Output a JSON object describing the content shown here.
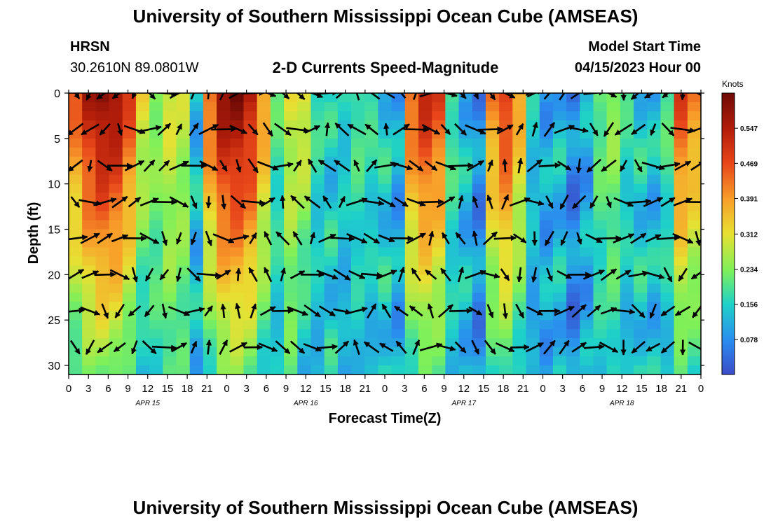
{
  "page": {
    "title": "University of Southern Mississippi Ocean Cube (AMSEAS)",
    "footer_title": "University of Southern Mississippi Ocean Cube (AMSEAS)",
    "station_name": "HRSN",
    "station_coords": "30.2610N  89.0801W",
    "model_start_label": "Model Start Time",
    "model_start_value": "04/15/2023 Hour 00"
  },
  "chart_data": {
    "type": "heatmap",
    "title": "2-D Currents Speed-Magnitude",
    "xlabel": "Forecast Time(Z)",
    "ylabel": "Depth (ft)",
    "xlim": [
      0,
      96
    ],
    "ylim": [
      0,
      31
    ],
    "x_tick_values": [
      0,
      3,
      6,
      9,
      12,
      15,
      18,
      21,
      24,
      27,
      30,
      33,
      36,
      39,
      42,
      45,
      48,
      51,
      54,
      57,
      60,
      63,
      66,
      69,
      72,
      75,
      78,
      81,
      84,
      87,
      90,
      93,
      96
    ],
    "x_tick_labels": [
      "0",
      "3",
      "6",
      "9",
      "12",
      "15",
      "18",
      "21",
      "0",
      "3",
      "6",
      "9",
      "12",
      "15",
      "18",
      "21",
      "0",
      "3",
      "6",
      "9",
      "12",
      "15",
      "18",
      "21",
      "0",
      "3",
      "6",
      "9",
      "12",
      "15",
      "18",
      "21",
      "0"
    ],
    "y_tick_values": [
      0,
      5,
      10,
      15,
      20,
      25,
      30
    ],
    "y_tick_labels": [
      "0",
      "5",
      "10",
      "15",
      "20",
      "25",
      "30"
    ],
    "day_labels": [
      {
        "hour": 12,
        "label": "APR 15"
      },
      {
        "hour": 36,
        "label": "APR 16"
      },
      {
        "hour": 60,
        "label": "APR 17"
      },
      {
        "hour": 84,
        "label": "APR 18"
      }
    ],
    "colorbar": {
      "units": "Knots",
      "range": [
        0,
        0.625
      ],
      "tick_values": [
        0.078,
        0.156,
        0.234,
        0.312,
        0.391,
        0.469,
        0.547
      ],
      "tick_labels": [
        "0.078",
        "0.156",
        "0.234",
        "0.312",
        "0.391",
        "0.469",
        "0.547"
      ]
    },
    "speed_profile_knots": [
      0.45,
      0.55,
      0.6,
      0.58,
      0.48,
      0.32,
      0.25,
      0.3,
      0.28,
      0.1,
      0.45,
      0.58,
      0.6,
      0.55,
      0.4,
      0.2,
      0.3,
      0.32,
      0.18,
      0.12,
      0.16,
      0.2,
      0.18,
      0.12,
      0.08,
      0.45,
      0.52,
      0.48,
      0.2,
      0.1,
      0.05,
      0.42,
      0.5,
      0.38,
      0.15,
      0.08,
      0.1,
      0.04,
      0.08,
      0.22,
      0.25,
      0.18,
      0.12,
      0.1,
      0.2,
      0.48,
      0.42
    ],
    "current_vectors": {
      "hour_step": 2.25,
      "depth_levels_ft": [
        0,
        4,
        8,
        12,
        16,
        20,
        24,
        28
      ]
    }
  }
}
